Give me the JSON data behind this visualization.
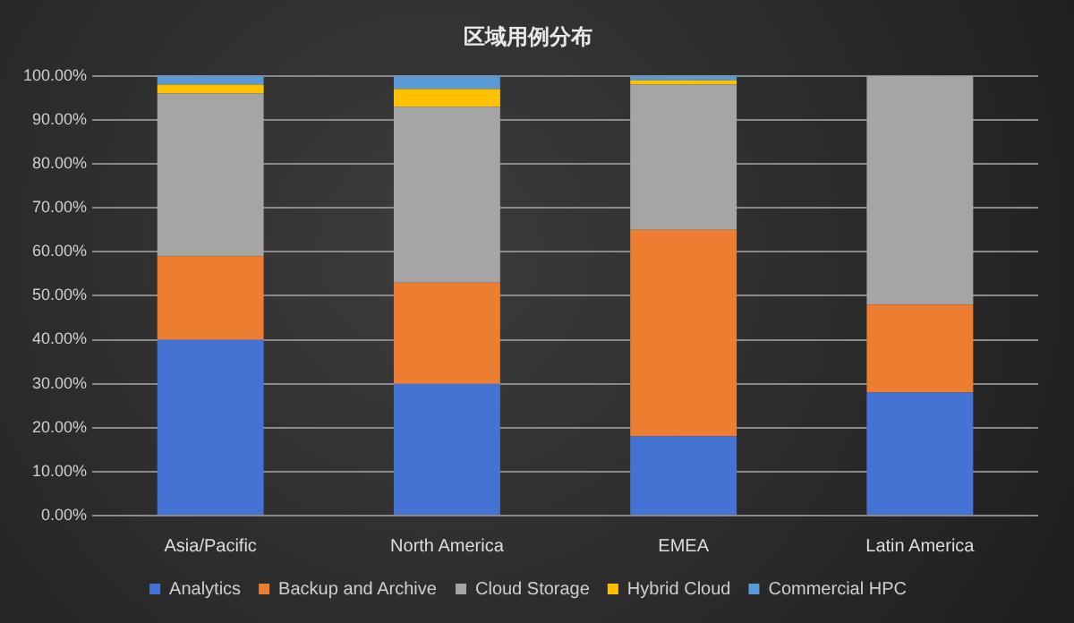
{
  "chart_data": {
    "type": "bar",
    "title": "区域用例分布",
    "stacked": true,
    "categories": [
      "Asia/Pacific",
      "North America",
      "EMEA",
      "Latin America"
    ],
    "series": [
      {
        "name": "Analytics",
        "color": "#4473d4",
        "values": [
          40,
          30,
          18,
          28
        ]
      },
      {
        "name": "Backup and Archive",
        "color": "#ed7d31",
        "values": [
          19,
          23,
          47,
          20
        ]
      },
      {
        "name": "Cloud Storage",
        "color": "#a5a5a5",
        "values": [
          37,
          40,
          33,
          52
        ]
      },
      {
        "name": "Hybrid Cloud",
        "color": "#ffc000",
        "values": [
          2,
          4,
          1,
          0
        ]
      },
      {
        "name": "Commercial HPC",
        "color": "#5b9bd5",
        "values": [
          2,
          3,
          1,
          0
        ]
      }
    ],
    "ylim": [
      0,
      100
    ],
    "yticks": [
      {
        "value": 0,
        "label": "0.00%"
      },
      {
        "value": 10,
        "label": "10.00%"
      },
      {
        "value": 20,
        "label": "20.00%"
      },
      {
        "value": 30,
        "label": "30.00%"
      },
      {
        "value": 40,
        "label": "40.00%"
      },
      {
        "value": 50,
        "label": "50.00%"
      },
      {
        "value": 60,
        "label": "60.00%"
      },
      {
        "value": 70,
        "label": "70.00%"
      },
      {
        "value": 80,
        "label": "80.00%"
      },
      {
        "value": 90,
        "label": "90.00%"
      },
      {
        "value": 100,
        "label": "100.00%"
      }
    ],
    "grid": "y",
    "legend": "bottom"
  }
}
